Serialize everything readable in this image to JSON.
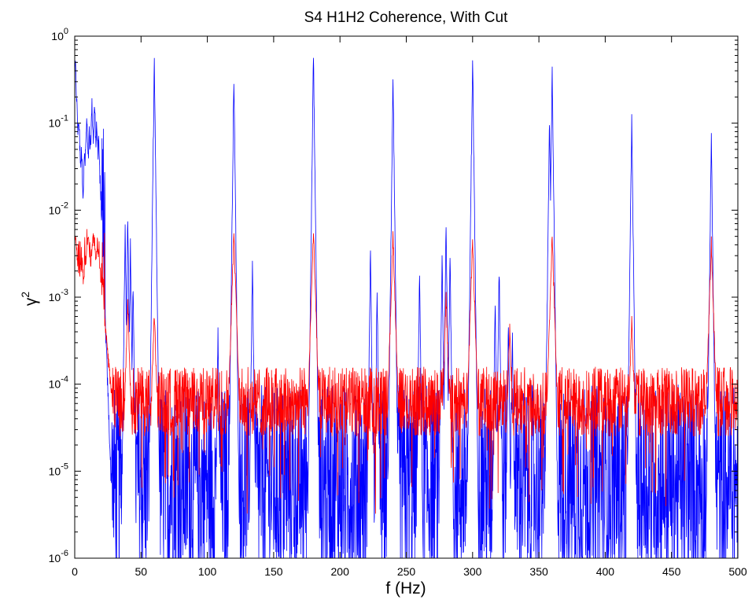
{
  "chart_data": {
    "type": "line",
    "title": "S4 H1H2 Coherence, With Cut",
    "xlabel": "f (Hz)",
    "ylabel": "γ",
    "ylabel_superscript": "2",
    "xlim": [
      0,
      500
    ],
    "ylim": [
      1e-06,
      1
    ],
    "yscale": "log",
    "grid": false,
    "x_ticks": [
      0,
      50,
      100,
      150,
      200,
      250,
      300,
      350,
      400,
      450,
      500
    ],
    "x_tick_labels": [
      "0",
      "50",
      "100",
      "150",
      "200",
      "250",
      "300",
      "350",
      "400",
      "450",
      "500"
    ],
    "y_ticks": [
      1e-06,
      1e-05,
      0.0001,
      0.001,
      0.01,
      0.1,
      1
    ],
    "y_tick_labels": [
      {
        "base": "10",
        "exp": "-6"
      },
      {
        "base": "10",
        "exp": "-5"
      },
      {
        "base": "10",
        "exp": "-4"
      },
      {
        "base": "10",
        "exp": "-3"
      },
      {
        "base": "10",
        "exp": "-2"
      },
      {
        "base": "10",
        "exp": "-1"
      },
      {
        "base": "10",
        "exp": "0"
      }
    ],
    "series": [
      {
        "color": "#0000ff",
        "style": "dense noisy spectrum, floor ~1e-6 to 1e-4",
        "peaks": [
          {
            "x": 0.5,
            "y": 0.6
          },
          {
            "x": 3,
            "y": 0.15
          },
          {
            "x": 5,
            "y": 0.07
          },
          {
            "x": 7.5,
            "y": 0.06
          },
          {
            "x": 9,
            "y": 0.13
          },
          {
            "x": 11,
            "y": 0.1
          },
          {
            "x": 13,
            "y": 0.2
          },
          {
            "x": 15,
            "y": 0.2
          },
          {
            "x": 16.5,
            "y": 0.13
          },
          {
            "x": 18,
            "y": 0.08
          },
          {
            "x": 38,
            "y": 0.0078
          },
          {
            "x": 40,
            "y": 0.011
          },
          {
            "x": 42,
            "y": 0.005
          },
          {
            "x": 44,
            "y": 0.0018
          },
          {
            "x": 60,
            "y": 0.65
          },
          {
            "x": 108,
            "y": 0.0005
          },
          {
            "x": 119,
            "y": 0.01
          },
          {
            "x": 120,
            "y": 0.45
          },
          {
            "x": 121,
            "y": 0.012
          },
          {
            "x": 134,
            "y": 0.0033
          },
          {
            "x": 179,
            "y": 0.018
          },
          {
            "x": 180,
            "y": 0.8
          },
          {
            "x": 181,
            "y": 0.02
          },
          {
            "x": 223,
            "y": 0.0045
          },
          {
            "x": 228,
            "y": 0.0015
          },
          {
            "x": 239,
            "y": 0.012
          },
          {
            "x": 240,
            "y": 0.41
          },
          {
            "x": 241,
            "y": 0.01
          },
          {
            "x": 260,
            "y": 0.0025
          },
          {
            "x": 277,
            "y": 0.0035
          },
          {
            "x": 280,
            "y": 0.008
          },
          {
            "x": 283,
            "y": 0.0045
          },
          {
            "x": 300,
            "y": 0.75
          },
          {
            "x": 317,
            "y": 0.0012
          },
          {
            "x": 320,
            "y": 0.0028
          },
          {
            "x": 327,
            "y": 0.00065
          },
          {
            "x": 330,
            "y": 0.00045
          },
          {
            "x": 358,
            "y": 0.15
          },
          {
            "x": 360,
            "y": 0.55
          },
          {
            "x": 362,
            "y": 0.0015
          },
          {
            "x": 420,
            "y": 0.15
          },
          {
            "x": 480,
            "y": 0.095
          }
        ]
      },
      {
        "color": "#ff0000",
        "style": "noisy spectrum, floor ~3e-5 to 1.5e-4",
        "peaks": [
          {
            "x": 0.5,
            "y": 0.006
          },
          {
            "x": 5,
            "y": 0.003
          },
          {
            "x": 10,
            "y": 0.006
          },
          {
            "x": 14,
            "y": 0.006
          },
          {
            "x": 17,
            "y": 0.005
          },
          {
            "x": 40,
            "y": 0.001
          },
          {
            "x": 60,
            "y": 0.0008
          },
          {
            "x": 120,
            "y": 0.0065
          },
          {
            "x": 180,
            "y": 0.0065
          },
          {
            "x": 240,
            "y": 0.006
          },
          {
            "x": 280,
            "y": 0.0012
          },
          {
            "x": 300,
            "y": 0.0055
          },
          {
            "x": 328,
            "y": 0.0005
          },
          {
            "x": 360,
            "y": 0.0058
          },
          {
            "x": 420,
            "y": 0.0007
          },
          {
            "x": 480,
            "y": 0.005
          }
        ]
      }
    ]
  }
}
